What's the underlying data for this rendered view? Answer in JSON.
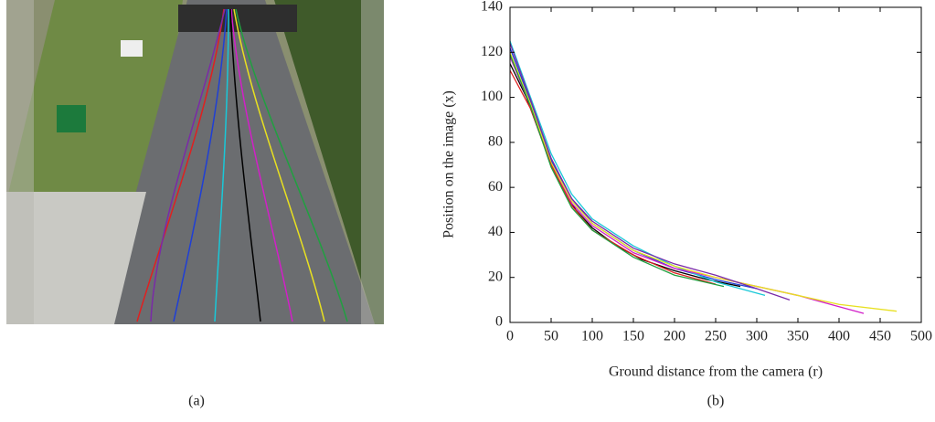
{
  "chart_data": {
    "type": "line",
    "xlabel": "Ground distance from the camera (r)",
    "ylabel": "Position on the image (x)",
    "xlim": [
      0,
      500
    ],
    "xticks": [
      0,
      50,
      100,
      150,
      200,
      250,
      300,
      350,
      400,
      450,
      500
    ],
    "ylim": [
      0,
      140
    ],
    "yticks": [
      0,
      20,
      40,
      60,
      80,
      100,
      120,
      140
    ],
    "grid": false,
    "series": [
      {
        "color": "#000000",
        "x": [
          0,
          20,
          40,
          60,
          80,
          100,
          130,
          160,
          200,
          240,
          280
        ],
        "values": [
          115,
          100,
          80,
          62,
          50,
          42,
          34,
          28,
          23,
          19,
          16
        ]
      },
      {
        "color": "#1f3fd6",
        "x": [
          0,
          25,
          50,
          75,
          100,
          150,
          200,
          250,
          300
        ],
        "values": [
          122,
          98,
          72,
          55,
          44,
          32,
          24,
          19,
          15
        ]
      },
      {
        "color": "#19c8d8",
        "x": [
          0,
          25,
          50,
          75,
          100,
          150,
          200,
          250,
          310
        ],
        "values": [
          125,
          100,
          75,
          57,
          46,
          34,
          25,
          18,
          12
        ]
      },
      {
        "color": "#d21fc8",
        "x": [
          0,
          25,
          50,
          75,
          100,
          150,
          200,
          250,
          300,
          350,
          400,
          430
        ],
        "values": [
          118,
          96,
          70,
          53,
          43,
          31,
          24,
          20,
          16,
          12,
          7,
          4
        ]
      },
      {
        "color": "#e8e020",
        "x": [
          0,
          25,
          50,
          75,
          100,
          150,
          200,
          250,
          300,
          350,
          400,
          470
        ],
        "values": [
          120,
          97,
          71,
          54,
          44,
          32,
          25,
          20,
          16,
          12,
          8,
          5
        ]
      },
      {
        "color": "#e02020",
        "x": [
          0,
          25,
          50,
          75,
          100,
          150,
          200,
          250
        ],
        "values": [
          112,
          95,
          70,
          52,
          41,
          30,
          22,
          17
        ]
      },
      {
        "color": "#20a040",
        "x": [
          0,
          25,
          50,
          75,
          100,
          150,
          200,
          260
        ],
        "values": [
          119,
          96,
          69,
          51,
          41,
          29,
          21,
          16
        ]
      },
      {
        "color": "#7a2aa8",
        "x": [
          0,
          25,
          50,
          75,
          100,
          150,
          200,
          250,
          300,
          340
        ],
        "values": [
          124,
          99,
          73,
          55,
          45,
          33,
          26,
          21,
          15,
          10
        ]
      }
    ]
  },
  "captions": [
    "(a)",
    "(b)"
  ]
}
